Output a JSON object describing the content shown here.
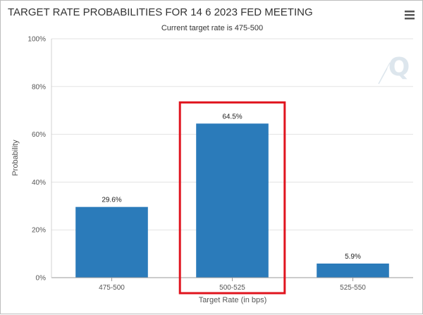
{
  "chart_data": {
    "type": "bar",
    "title": "TARGET RATE PROBABILITIES FOR 14 6 2023 FED MEETING",
    "subtitle": "Current target rate is 475-500",
    "xlabel": "Target Rate (in bps)",
    "ylabel": "Probability",
    "categories": [
      "475-500",
      "500-525",
      "525-550"
    ],
    "values": [
      29.6,
      64.5,
      5.9
    ],
    "data_labels": [
      "29.6%",
      "64.5%",
      "5.9%"
    ],
    "ylim": [
      0,
      100
    ],
    "yticks": [
      0,
      20,
      40,
      60,
      80,
      100
    ],
    "ytick_labels": [
      "0%",
      "20%",
      "40%",
      "60%",
      "80%",
      "100%"
    ],
    "grid": true,
    "legend": "none",
    "bar_color": "#2b7bba",
    "highlighted_category": "500-525",
    "highlight_color": "#e0141e"
  },
  "toolbar": {
    "menu_icon": "hamburger-menu-icon"
  },
  "watermark": {
    "icon": "q-logo-icon"
  }
}
